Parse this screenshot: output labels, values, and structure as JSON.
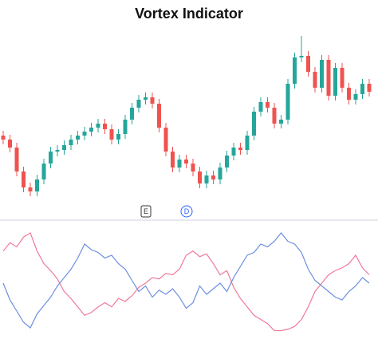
{
  "chart_data": [
    {
      "type": "candlestick",
      "title": "Vortex Indicator",
      "up_color": "#26a69a",
      "down_color": "#ef5350",
      "ylim": [
        30,
        270
      ],
      "open": [
        130,
        125,
        115,
        85,
        65,
        60,
        75,
        95,
        110,
        112,
        118,
        125,
        130,
        135,
        140,
        145,
        138,
        125,
        132,
        150,
        165,
        175,
        178,
        170,
        140,
        110,
        90,
        100,
        95,
        85,
        70,
        80,
        75,
        90,
        105,
        115,
        112,
        130,
        160,
        172,
        165,
        145,
        150,
        195,
        228,
        230,
        210,
        190,
        225,
        180,
        215,
        190,
        175,
        182,
        195
      ],
      "high": [
        136,
        131,
        121,
        91,
        71,
        81,
        101,
        116,
        118,
        124,
        131,
        136,
        141,
        146,
        151,
        151,
        144,
        138,
        156,
        171,
        181,
        184,
        184,
        176,
        146,
        116,
        106,
        106,
        101,
        91,
        86,
        86,
        96,
        111,
        121,
        121,
        136,
        166,
        178,
        178,
        171,
        156,
        201,
        234,
        255,
        236,
        216,
        231,
        231,
        221,
        221,
        196,
        188,
        201,
        201
      ],
      "low": [
        119,
        109,
        79,
        59,
        54,
        54,
        69,
        89,
        104,
        106,
        112,
        119,
        124,
        129,
        134,
        132,
        119,
        119,
        126,
        144,
        159,
        169,
        164,
        134,
        104,
        84,
        84,
        89,
        79,
        64,
        64,
        69,
        69,
        84,
        99,
        106,
        106,
        124,
        154,
        159,
        139,
        139,
        144,
        189,
        222,
        204,
        184,
        184,
        174,
        174,
        184,
        169,
        169,
        176,
        179
      ],
      "close": [
        125,
        115,
        85,
        65,
        60,
        75,
        95,
        110,
        112,
        118,
        125,
        130,
        135,
        140,
        145,
        138,
        125,
        132,
        150,
        165,
        175,
        178,
        170,
        140,
        110,
        90,
        100,
        95,
        85,
        70,
        80,
        75,
        90,
        105,
        115,
        112,
        130,
        160,
        172,
        165,
        145,
        150,
        195,
        228,
        230,
        210,
        190,
        225,
        180,
        215,
        190,
        175,
        182,
        195,
        185
      ],
      "annotations": [
        {
          "label": "E",
          "color": "#333333"
        },
        {
          "label": "D",
          "color": "#2962ff"
        }
      ]
    },
    {
      "type": "line",
      "ylim": [
        0.6,
        1.4
      ],
      "series": [
        {
          "color": "#f0799a",
          "values": [
            1.23,
            1.29,
            1.26,
            1.33,
            1.36,
            1.23,
            1.14,
            1.09,
            1.03,
            0.94,
            0.89,
            0.83,
            0.77,
            0.79,
            0.83,
            0.86,
            0.83,
            0.89,
            0.87,
            0.91,
            0.97,
            1.0,
            1.04,
            1.03,
            1.07,
            1.06,
            1.1,
            1.2,
            1.23,
            1.19,
            1.21,
            1.14,
            1.06,
            1.09,
            0.97,
            0.89,
            0.83,
            0.77,
            0.74,
            0.71,
            0.66,
            0.66,
            0.67,
            0.69,
            0.74,
            0.83,
            0.94,
            1.0,
            1.06,
            1.09,
            1.11,
            1.14,
            1.2,
            1.11,
            1.06
          ]
        },
        {
          "color": "#6d8fe0",
          "values": [
            1.0,
            0.88,
            0.8,
            0.72,
            0.68,
            0.78,
            0.84,
            0.9,
            0.98,
            1.04,
            1.1,
            1.18,
            1.28,
            1.24,
            1.22,
            1.18,
            1.2,
            1.14,
            1.1,
            1.02,
            0.94,
            0.98,
            0.9,
            0.95,
            0.92,
            0.96,
            0.9,
            0.82,
            0.86,
            0.98,
            0.92,
            0.96,
            1.0,
            0.94,
            1.04,
            1.12,
            1.2,
            1.22,
            1.28,
            1.26,
            1.3,
            1.36,
            1.3,
            1.28,
            1.22,
            1.1,
            1.02,
            0.98,
            0.94,
            0.9,
            0.88,
            0.94,
            0.98,
            1.04,
            1.0
          ]
        }
      ]
    }
  ]
}
